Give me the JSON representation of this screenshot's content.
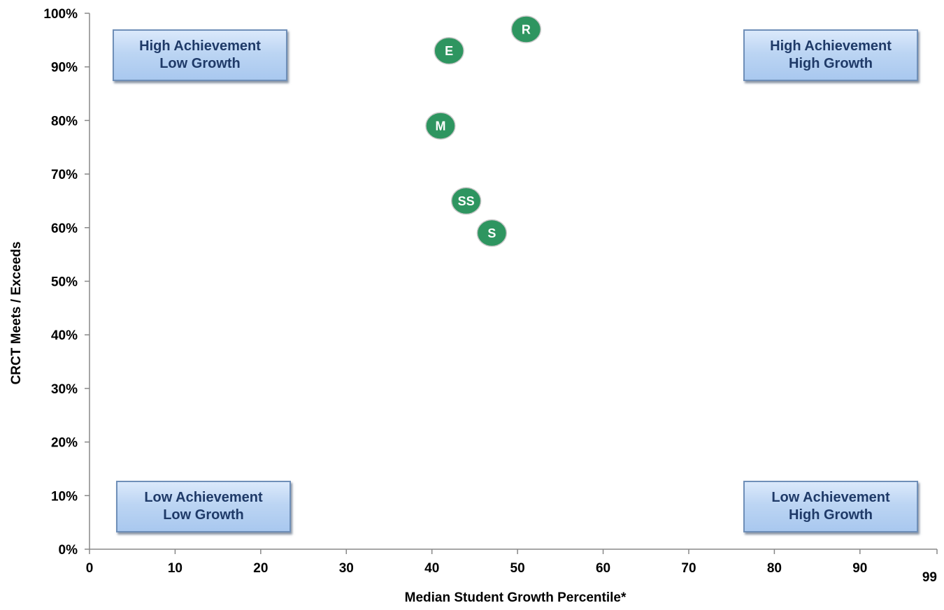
{
  "chart_data": {
    "type": "scatter",
    "title": "",
    "xlabel": "Median Student Growth Percentile*",
    "ylabel": "CRCT Meets / Exceeds",
    "xlim": [
      0,
      99
    ],
    "ylim": [
      0,
      100
    ],
    "x_ticks": [
      "0",
      "10",
      "20",
      "30",
      "40",
      "50",
      "60",
      "70",
      "80",
      "90",
      "99"
    ],
    "y_ticks": [
      "0%",
      "10%",
      "20%",
      "30%",
      "40%",
      "50%",
      "60%",
      "70%",
      "80%",
      "90%",
      "100%"
    ],
    "grid": false,
    "points": [
      {
        "label": "R",
        "x": 51,
        "y": 97
      },
      {
        "label": "E",
        "x": 42,
        "y": 93
      },
      {
        "label": "M",
        "x": 41,
        "y": 79
      },
      {
        "label": "SS",
        "x": 44,
        "y": 65
      },
      {
        "label": "S",
        "x": 47,
        "y": 59
      }
    ],
    "marker_color": "#2e9560",
    "marker_border": "#c9c9c9",
    "quadrant_labels": {
      "top_left": [
        "High Achievement",
        "Low Growth"
      ],
      "top_right": [
        "High Achievement",
        "High Growth"
      ],
      "bottom_left": [
        "Low Achievement",
        "Low Growth"
      ],
      "bottom_right": [
        "Low Achievement",
        "High Growth"
      ]
    }
  }
}
